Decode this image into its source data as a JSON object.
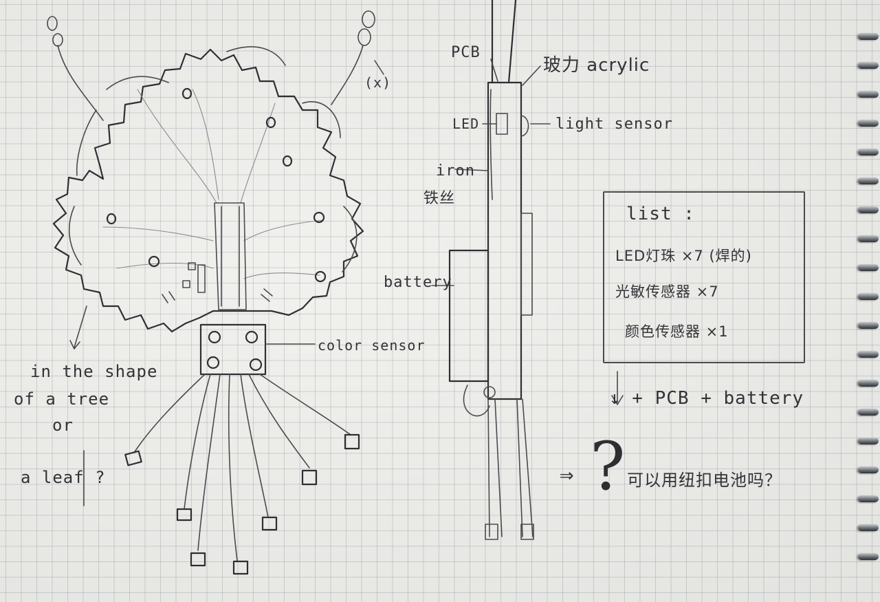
{
  "labels": {
    "pcb": "PCB",
    "acrylic": "玻力 acrylic",
    "led": "LED",
    "light_sensor": "light sensor",
    "iron": "iron",
    "iron_cn": "铁丝",
    "battery": "battery",
    "color_sensor": "color sensor",
    "x_mark": "(x)",
    "shape_note_1": "in the shape",
    "shape_note_2": "of a tree",
    "shape_note_3": "or",
    "shape_note_4": "a leaf ?",
    "plus_line": "↓ + PCB + battery",
    "arrow": "⇒",
    "question_mark": "?",
    "question_cn": "可以用纽扣电池吗？"
  },
  "list": {
    "title": "list :",
    "items": [
      "LED灯珠 ×7 (焊的)",
      "光敏传感器 ×7",
      "颜色传感器 ×1"
    ]
  },
  "colors": {
    "paper": "#f1f1ee",
    "grid": "#8a909a",
    "pencil": "#4a4c4f",
    "ring": "#6f757a"
  }
}
